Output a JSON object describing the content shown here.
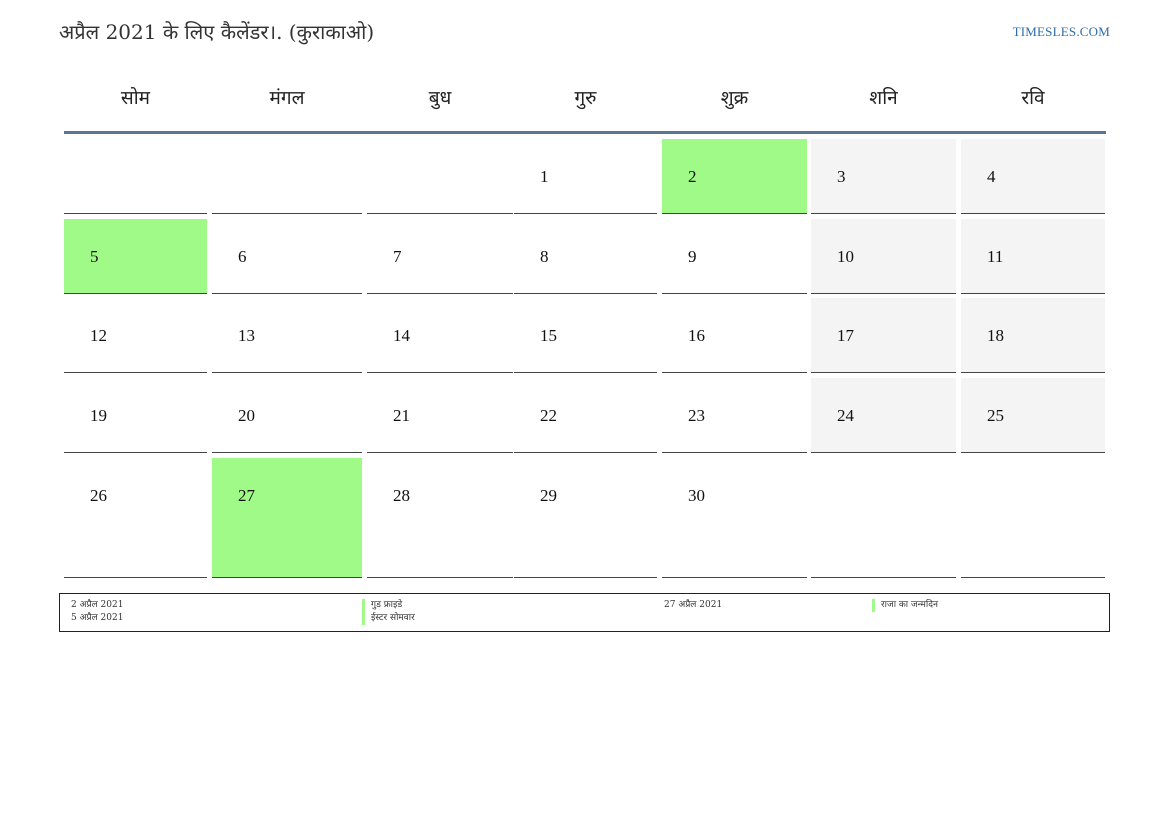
{
  "header": {
    "title": "अप्रैल 2021 के लिए कैलेंडर।. (कुराकाओ)",
    "site": "TIMESLES.COM"
  },
  "weekdays": [
    "सोम",
    "मंगल",
    "बुध",
    "गुरु",
    "शुक्र",
    "शनि",
    "रवि"
  ],
  "weeks": [
    [
      null,
      null,
      null,
      1,
      2,
      3,
      4
    ],
    [
      5,
      6,
      7,
      8,
      9,
      10,
      11
    ],
    [
      12,
      13,
      14,
      15,
      16,
      17,
      18
    ],
    [
      19,
      20,
      21,
      22,
      23,
      24,
      25
    ],
    [
      26,
      27,
      28,
      29,
      30,
      null,
      null
    ]
  ],
  "holiday_days": [
    2,
    5,
    27
  ],
  "colors": {
    "holiday": "#9ffa88",
    "weekend": "#f4f4f4",
    "header_rule": "#5b7593",
    "site_link": "#2e6da4"
  },
  "legend": [
    {
      "date": "2 अप्रैल 2021",
      "name": "गुड फ्राइडे"
    },
    {
      "date": "5 अप्रैल 2021",
      "name": "ईस्टर सोमवार"
    },
    {
      "date": "27 अप्रैल 2021",
      "name": "राजा का जन्मदिन"
    }
  ]
}
